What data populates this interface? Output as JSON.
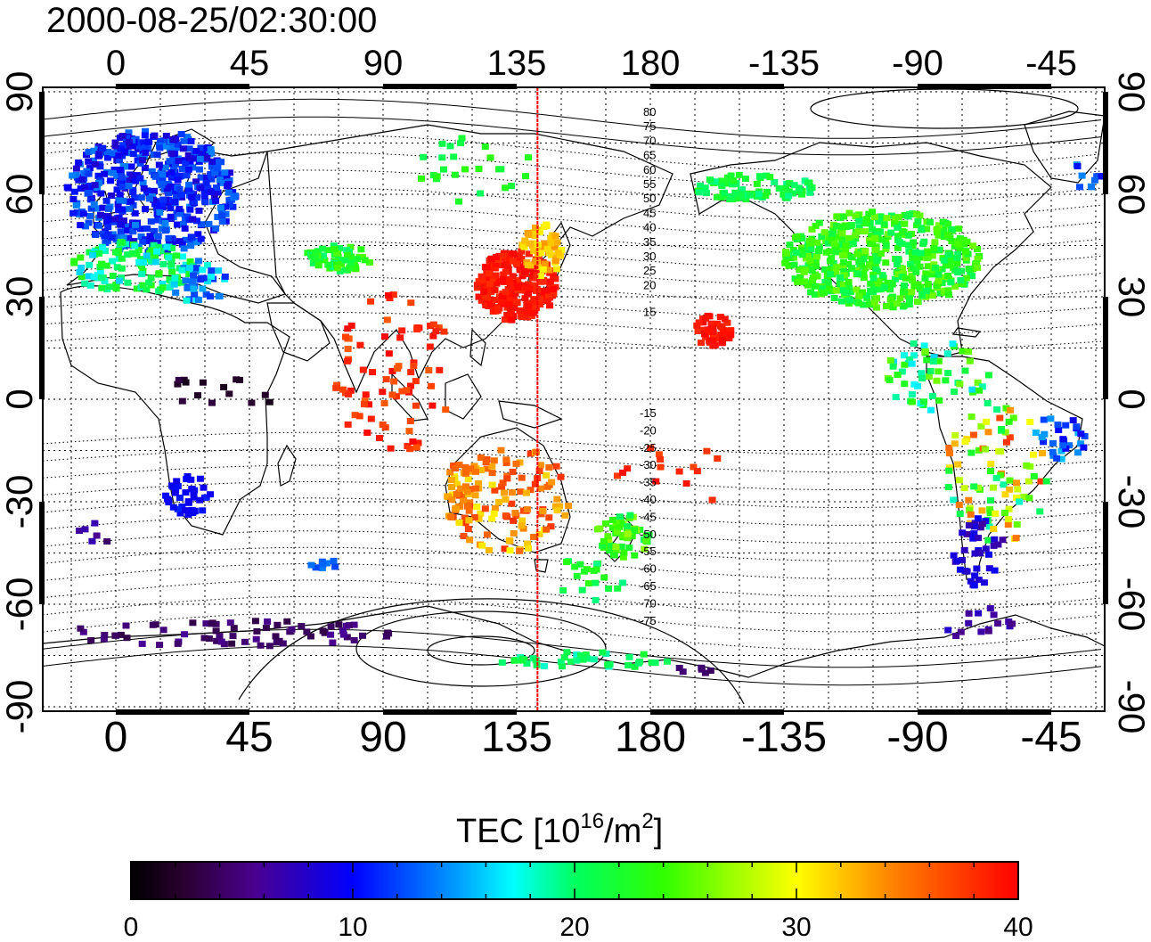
{
  "title": "2000-08-25/02:30:00",
  "lon_ticks": [
    "0",
    "45",
    "90",
    "135",
    "180",
    "-135",
    "-90",
    "-45"
  ],
  "lat_ticks": [
    "90",
    "60",
    "30",
    "0",
    "-30",
    "-60",
    "-90"
  ],
  "maglat_labels_north": [
    "80",
    "75",
    "70",
    "65",
    "60",
    "55",
    "50",
    "45",
    "40",
    "35",
    "30",
    "25",
    "20",
    "15"
  ],
  "maglat_labels_south": [
    "-15",
    "-20",
    "-25",
    "-30",
    "-35",
    "-40",
    "-45",
    "-50",
    "-55",
    "-60",
    "-65",
    "-70",
    "-75"
  ],
  "colorbar": {
    "title_main": "TEC  [10",
    "title_exp1": "16",
    "title_mid": "/m",
    "title_exp2": "2",
    "title_end": "]",
    "tick_labels": [
      "0",
      "10",
      "20",
      "30",
      "40"
    ],
    "min": 0,
    "max": 40
  },
  "marker_lon": 142,
  "colors": {
    "marker_line": "#ff0000",
    "frame": "#000000"
  }
}
